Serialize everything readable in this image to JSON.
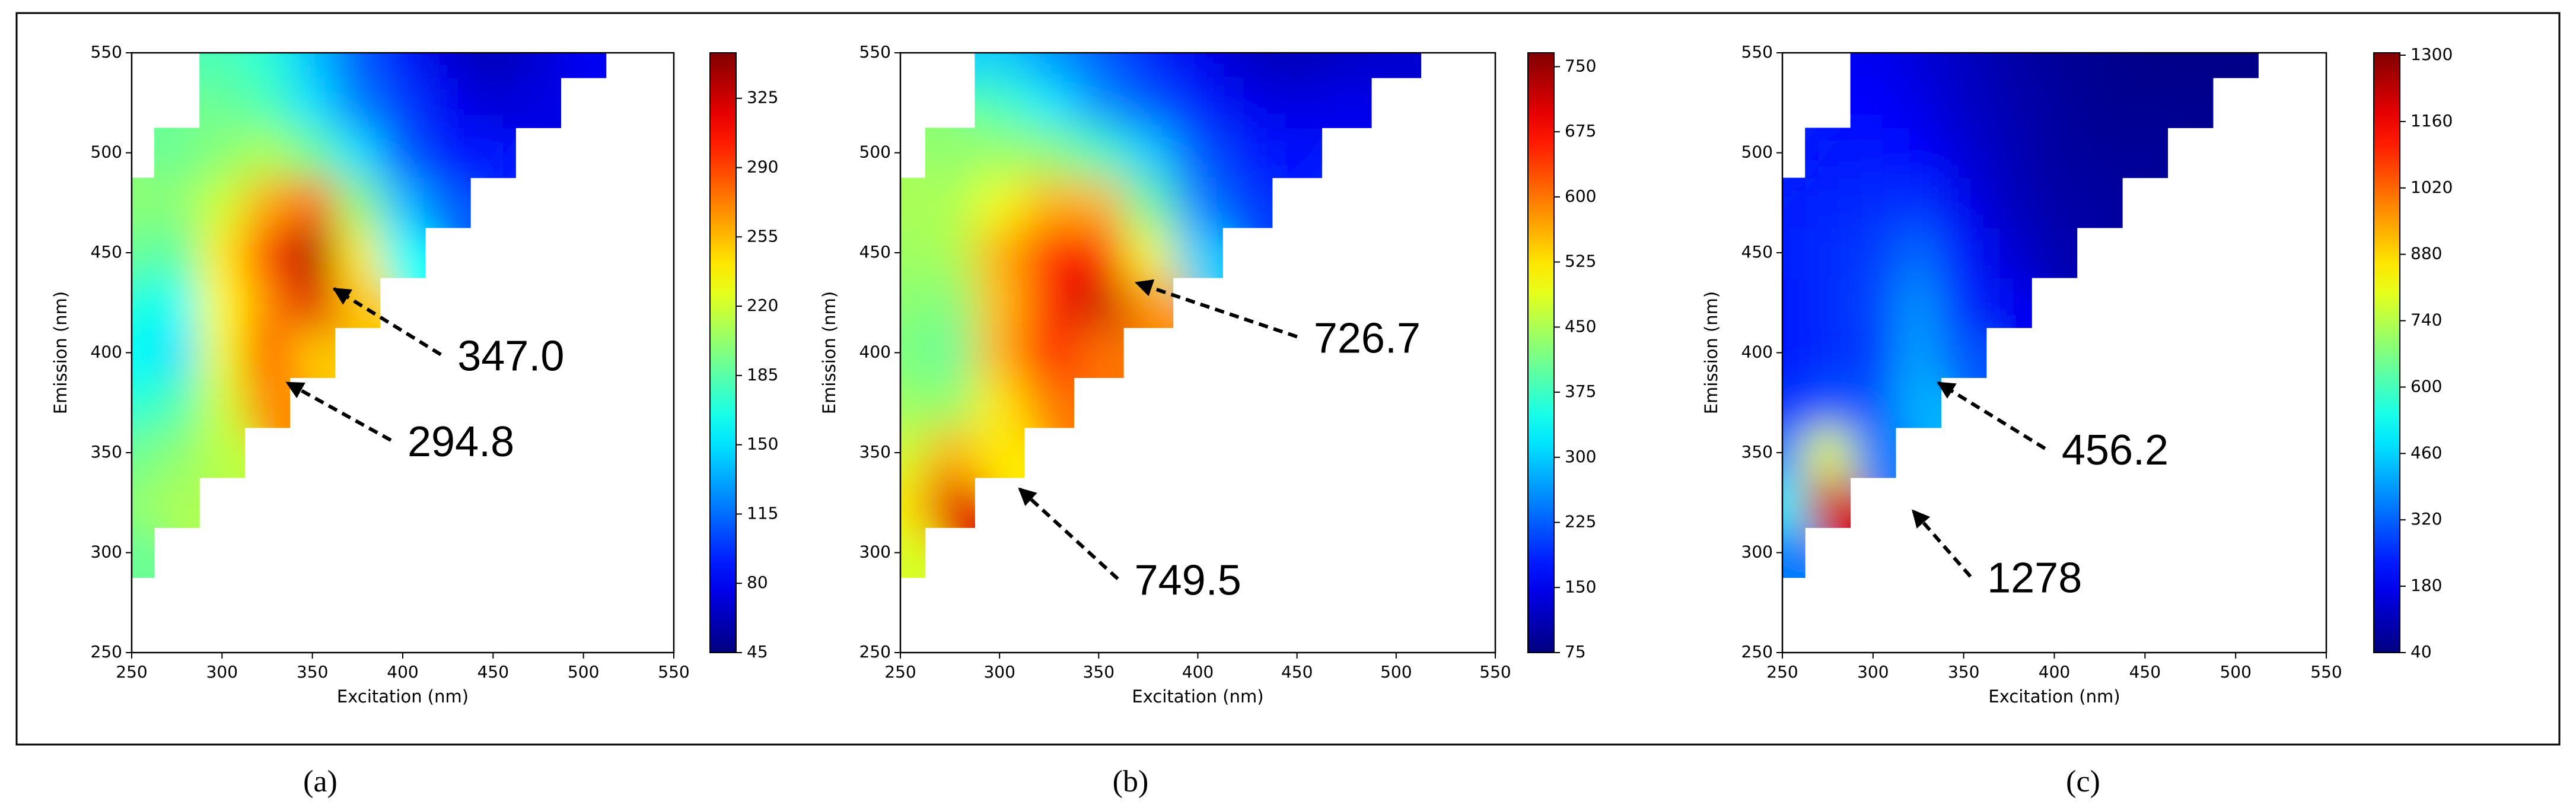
{
  "chart_data": [
    {
      "type": "heatmap",
      "panel_label": "(a)",
      "xlabel": "Excitation (nm)",
      "ylabel": "Emission (nm)",
      "xlim": [
        250,
        550
      ],
      "ylim": [
        250,
        550
      ],
      "xticks": [
        250,
        300,
        350,
        400,
        450,
        500,
        550
      ],
      "yticks": [
        250,
        300,
        350,
        400,
        450,
        500,
        550
      ],
      "colormap": "jet",
      "clim": [
        45,
        348
      ],
      "cticks": [
        45,
        80,
        115,
        150,
        185,
        220,
        255,
        290,
        325
      ],
      "x": [
        250,
        275,
        300,
        325,
        350,
        375,
        400,
        425,
        450,
        475,
        500,
        525
      ],
      "y": [
        250,
        275,
        300,
        325,
        350,
        375,
        400,
        425,
        450,
        475,
        500,
        525,
        550
      ],
      "z": [
        [
          null,
          null,
          null,
          null,
          null,
          null,
          null,
          null,
          null,
          null,
          null,
          null
        ],
        [
          null,
          null,
          null,
          null,
          null,
          null,
          null,
          null,
          null,
          null,
          null,
          null
        ],
        [
          190,
          null,
          null,
          null,
          null,
          null,
          null,
          null,
          null,
          null,
          null,
          null
        ],
        [
          200,
          210,
          null,
          null,
          null,
          null,
          null,
          null,
          null,
          null,
          null,
          null
        ],
        [
          190,
          200,
          215,
          null,
          null,
          null,
          null,
          null,
          null,
          null,
          null,
          null
        ],
        [
          170,
          180,
          220,
          270,
          null,
          null,
          null,
          null,
          null,
          null,
          null,
          null
        ],
        [
          160,
          150,
          230,
          285,
          250,
          null,
          null,
          null,
          null,
          null,
          null,
          null
        ],
        [
          170,
          160,
          235,
          270,
          320,
          250,
          null,
          null,
          null,
          null,
          null,
          null
        ],
        [
          190,
          185,
          240,
          290,
          335,
          240,
          160,
          null,
          null,
          null,
          null,
          null
        ],
        [
          200,
          200,
          220,
          260,
          280,
          200,
          140,
          110,
          null,
          null,
          null,
          null
        ],
        [
          null,
          190,
          200,
          210,
          190,
          150,
          110,
          90,
          90,
          null,
          null,
          null
        ],
        [
          null,
          null,
          190,
          180,
          150,
          120,
          100,
          80,
          70,
          75,
          null,
          null
        ],
        [
          null,
          null,
          180,
          170,
          140,
          110,
          90,
          70,
          60,
          70,
          80,
          null
        ]
      ],
      "peaks": {
        "x": [
          362,
          336
        ],
        "y": [
          432,
          385
        ],
        "values": [
          347,
          294.8
        ],
        "value_labels": [
          "347.0",
          "294.8"
        ]
      }
    },
    {
      "type": "heatmap",
      "panel_label": "(b)",
      "xlabel": "Excitation (nm)",
      "ylabel": "Emission (nm)",
      "xlim": [
        250,
        550
      ],
      "ylim": [
        250,
        550
      ],
      "xticks": [
        250,
        300,
        350,
        400,
        450,
        500,
        550
      ],
      "yticks": [
        250,
        300,
        350,
        400,
        450,
        500,
        550
      ],
      "colormap": "jet",
      "clim": [
        75,
        766
      ],
      "cticks": [
        75,
        150,
        225,
        300,
        375,
        450,
        525,
        600,
        675,
        750
      ],
      "x": [
        250,
        275,
        300,
        325,
        350,
        375,
        400,
        425,
        450,
        475,
        500,
        525
      ],
      "y": [
        250,
        275,
        300,
        325,
        350,
        375,
        400,
        425,
        450,
        475,
        500,
        525,
        550
      ],
      "z": [
        [
          null,
          null,
          null,
          null,
          null,
          null,
          null,
          null,
          null,
          null,
          null,
          null
        ],
        [
          null,
          null,
          null,
          null,
          null,
          null,
          null,
          null,
          null,
          null,
          null,
          null
        ],
        [
          480,
          null,
          null,
          null,
          null,
          null,
          null,
          null,
          null,
          null,
          null,
          null
        ],
        [
          520,
          700,
          null,
          null,
          null,
          null,
          null,
          null,
          null,
          null,
          null,
          null
        ],
        [
          470,
          560,
          520,
          null,
          null,
          null,
          null,
          null,
          null,
          null,
          null,
          null
        ],
        [
          440,
          430,
          520,
          600,
          null,
          null,
          null,
          null,
          null,
          null,
          null,
          null
        ],
        [
          420,
          400,
          560,
          680,
          600,
          null,
          null,
          null,
          null,
          null,
          null,
          null
        ],
        [
          430,
          420,
          550,
          650,
          720,
          580,
          null,
          null,
          null,
          null,
          null,
          null
        ],
        [
          440,
          450,
          560,
          650,
          680,
          500,
          300,
          null,
          null,
          null,
          null,
          null
        ],
        [
          450,
          450,
          500,
          560,
          560,
          400,
          250,
          200,
          null,
          null,
          null,
          null
        ],
        [
          null,
          430,
          440,
          430,
          380,
          300,
          220,
          180,
          170,
          null,
          null,
          null
        ],
        [
          null,
          null,
          380,
          320,
          260,
          220,
          180,
          150,
          140,
          150,
          null,
          null
        ],
        [
          null,
          null,
          300,
          260,
          220,
          180,
          150,
          120,
          110,
          120,
          130,
          null
        ]
      ],
      "peaks": {
        "x": [
          369,
          310
        ],
        "y": [
          435,
          332
        ],
        "values": [
          726.7,
          749.5
        ]
      }
    },
    {
      "type": "heatmap",
      "panel_label": "(c)",
      "xlabel": "Excitation (nm)",
      "ylabel": "Emission (nm)",
      "xlim": [
        250,
        550
      ],
      "ylim": [
        250,
        550
      ],
      "xticks": [
        250,
        300,
        350,
        400,
        450,
        500,
        550
      ],
      "yticks": [
        250,
        300,
        350,
        400,
        450,
        500,
        550
      ],
      "colormap": "jet",
      "clim": [
        40,
        1305
      ],
      "cticks": [
        40,
        180,
        320,
        460,
        600,
        740,
        880,
        1020,
        1160,
        1300
      ],
      "x": [
        250,
        275,
        300,
        325,
        350,
        375,
        400,
        425,
        450,
        475,
        500,
        525
      ],
      "y": [
        250,
        275,
        300,
        325,
        350,
        375,
        400,
        425,
        450,
        475,
        500,
        525,
        550
      ],
      "z": [
        [
          null,
          null,
          null,
          null,
          null,
          null,
          null,
          null,
          null,
          null,
          null,
          null
        ],
        [
          null,
          null,
          null,
          null,
          null,
          null,
          null,
          null,
          null,
          null,
          null,
          null
        ],
        [
          350,
          null,
          null,
          null,
          null,
          null,
          null,
          null,
          null,
          null,
          null,
          null
        ],
        [
          500,
          1200,
          null,
          null,
          null,
          null,
          null,
          null,
          null,
          null,
          null,
          null
        ],
        [
          350,
          800,
          350,
          null,
          null,
          null,
          null,
          null,
          null,
          null,
          null,
          null
        ],
        [
          250,
          300,
          300,
          420,
          null,
          null,
          null,
          null,
          null,
          null,
          null,
          null
        ],
        [
          220,
          250,
          270,
          400,
          300,
          null,
          null,
          null,
          null,
          null,
          null,
          null
        ],
        [
          220,
          250,
          280,
          380,
          250,
          180,
          null,
          null,
          null,
          null,
          null,
          null
        ],
        [
          230,
          250,
          270,
          330,
          220,
          150,
          100,
          null,
          null,
          null,
          null,
          null
        ],
        [
          230,
          240,
          250,
          260,
          180,
          120,
          90,
          80,
          null,
          null,
          null,
          null
        ],
        [
          null,
          220,
          220,
          200,
          150,
          110,
          80,
          70,
          70,
          null,
          null,
          null
        ],
        [
          null,
          null,
          200,
          170,
          130,
          100,
          80,
          60,
          60,
          60,
          null,
          null
        ],
        [
          null,
          null,
          180,
          150,
          120,
          90,
          70,
          60,
          50,
          50,
          50,
          null
        ]
      ],
      "peaks": {
        "x": [
          336,
          322
        ],
        "y": [
          385,
          321
        ],
        "values": [
          456.2,
          1278
        ]
      }
    }
  ]
}
